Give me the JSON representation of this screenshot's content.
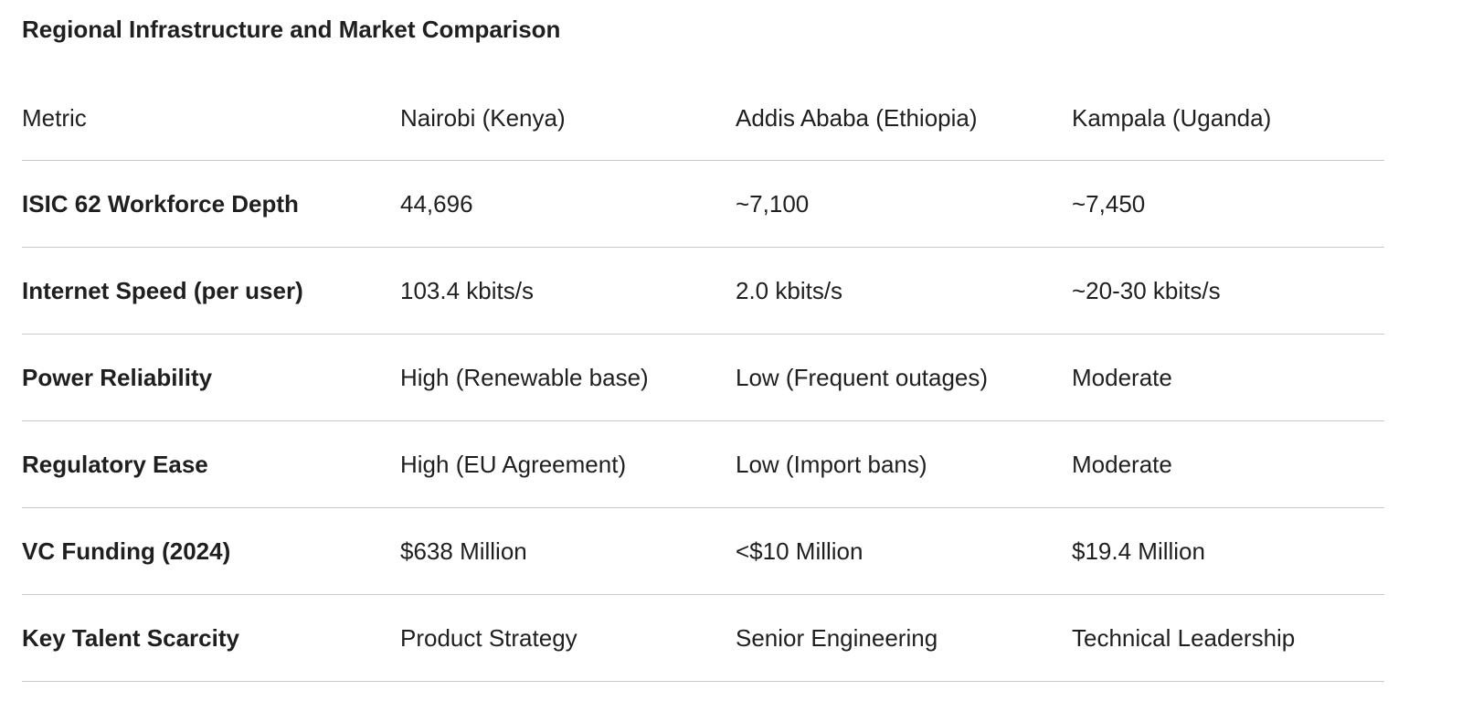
{
  "title": "Regional Infrastructure and Market Comparison",
  "table": {
    "columns": [
      "Metric",
      "Nairobi (Kenya)",
      "Addis Ababa (Ethiopia)",
      "Kampala (Uganda)"
    ],
    "rows": [
      {
        "metric": "ISIC 62 Workforce Depth",
        "values": [
          "44,696",
          "~7,100",
          "~7,450"
        ]
      },
      {
        "metric": "Internet Speed (per user)",
        "values": [
          "103.4 kbits/s",
          "2.0 kbits/s",
          "~20-30 kbits/s"
        ]
      },
      {
        "metric": "Power Reliability",
        "values": [
          "High (Renewable base)",
          "Low (Frequent outages)",
          "Moderate"
        ]
      },
      {
        "metric": "Regulatory Ease",
        "values": [
          "High (EU Agreement)",
          "Low (Import bans)",
          "Moderate"
        ]
      },
      {
        "metric": "VC Funding (2024)",
        "values": [
          "$638 Million",
          "<$10 Million",
          "$19.4 Million"
        ]
      },
      {
        "metric": "Key Talent Scarcity",
        "values": [
          "Product Strategy",
          "Senior Engineering",
          "Technical Leadership"
        ]
      }
    ]
  }
}
